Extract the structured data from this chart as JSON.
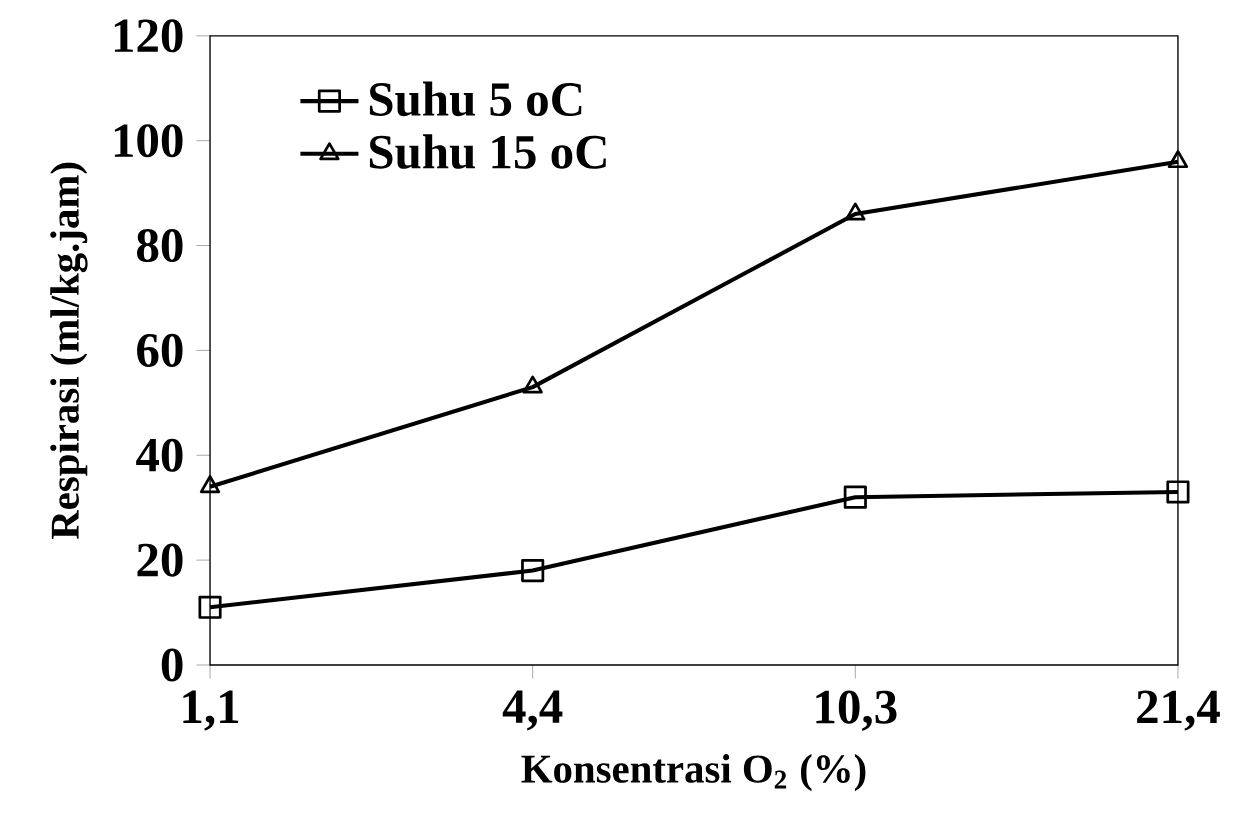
{
  "chart_data": {
    "type": "line",
    "xlabel": "Konsentrasi O$_{2}$ (%)",
    "ylabel": "Respirasi (ml/kg.jam)",
    "categories": [
      "1,1",
      "4,4",
      "10,3",
      "21,4"
    ],
    "series": [
      {
        "name": "Suhu 5 oC",
        "color": "#000000",
        "marker": "square",
        "values": [
          11,
          18,
          32,
          33
        ]
      },
      {
        "name": "Suhu 15 oC",
        "color": "#000000",
        "marker": "triangle",
        "values": [
          34,
          53,
          86,
          96
        ]
      }
    ],
    "ylim": [
      0,
      120
    ],
    "yticks": [
      0,
      20,
      40,
      60,
      80,
      100,
      120
    ],
    "grid": false,
    "legend": "top left",
    "line_style": "solid"
  }
}
